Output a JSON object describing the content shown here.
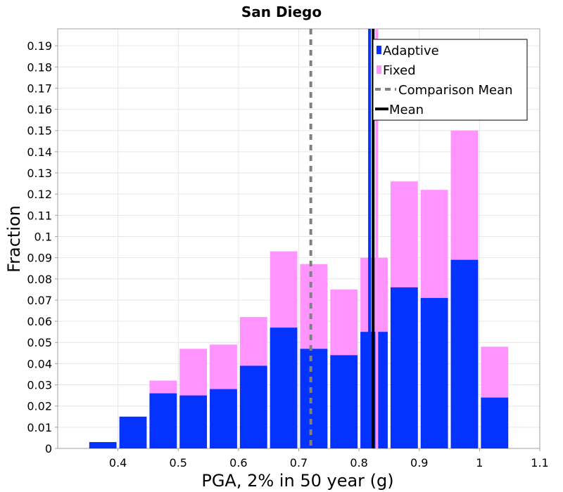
{
  "chart_data": {
    "type": "bar",
    "title": "San Diego",
    "xlabel": "PGA, 2% in 50 year (g)",
    "ylabel": "Fraction",
    "xlim": [
      0.3,
      1.1
    ],
    "ylim": [
      0,
      0.198
    ],
    "bin_width": 0.05,
    "x_ticks": [
      "0.4",
      "0.5",
      "0.6",
      "0.7",
      "0.8",
      "0.9",
      "1",
      "1.1"
    ],
    "y_ticks": [
      "0",
      "0.01",
      "0.02",
      "0.03",
      "0.04",
      "0.05",
      "0.06",
      "0.07",
      "0.08",
      "0.09",
      "0.1",
      "0.11",
      "0.12",
      "0.13",
      "0.14",
      "0.15",
      "0.16",
      "0.17",
      "0.18",
      "0.19"
    ],
    "bin_centers": [
      0.325,
      0.375,
      0.425,
      0.475,
      0.525,
      0.575,
      0.625,
      0.675,
      0.725,
      0.775,
      0.825,
      0.875,
      0.925,
      0.975,
      1.025
    ],
    "series": [
      {
        "name": "Adaptive",
        "color": "#0433ff",
        "values": [
          0.0,
          0.003,
          0.015,
          0.026,
          0.025,
          0.028,
          0.039,
          0.057,
          0.047,
          0.044,
          0.055,
          0.076,
          0.071,
          0.089,
          0.024
        ]
      },
      {
        "name": "Fixed",
        "color": "#ff94ff",
        "values": [
          0.0,
          0.0,
          0.0,
          0.032,
          0.047,
          0.049,
          0.062,
          0.093,
          0.087,
          0.075,
          0.09,
          0.126,
          0.122,
          0.15,
          0.048
        ]
      }
    ],
    "reference_lines": [
      {
        "name": "Comparison Mean",
        "x": 0.72,
        "color": "#808080",
        "style": "dashed"
      },
      {
        "name": "Mean",
        "x": 0.8175,
        "color": "#0433ff",
        "style": "solid",
        "series": "Adaptive"
      },
      {
        "name": "Mean",
        "x": 0.8295,
        "color": "#ff94ff",
        "style": "solid",
        "series": "Fixed"
      },
      {
        "name": "Mean",
        "x": 0.8235,
        "color": "#000000",
        "style": "solid",
        "series": "Overall"
      }
    ],
    "legend": {
      "position": "top-right",
      "entries": [
        {
          "label": "Adaptive",
          "color": "#0433ff",
          "kind": "swatch"
        },
        {
          "label": "Fixed",
          "color": "#ff94ff",
          "kind": "swatch"
        },
        {
          "label": "Comparison Mean",
          "color": "#808080",
          "kind": "dashed-line"
        },
        {
          "label": "Mean",
          "color": "#000000",
          "kind": "line"
        }
      ]
    },
    "grid": true
  }
}
